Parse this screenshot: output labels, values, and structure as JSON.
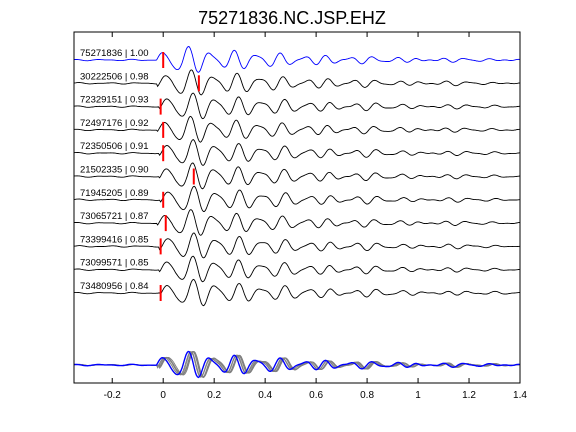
{
  "chart_data": {
    "type": "line",
    "title": "75271836.NC.JSP.EHZ",
    "xlabel": "",
    "ylabel": "",
    "xlim": [
      -0.35,
      1.4
    ],
    "xticks": [
      -0.2,
      0,
      0.2,
      0.4,
      0.6,
      0.8,
      1,
      1.2,
      1.4
    ],
    "xtick_labels": [
      "-0.2",
      "0",
      "0.2",
      "0.4",
      "0.6",
      "0.8",
      "1",
      "1.2",
      "1.4"
    ],
    "grid": false,
    "colors": {
      "reference": "#0000ff",
      "trace": "#000000",
      "pick": "#ff0000",
      "stack_overlay": "#808080"
    },
    "series": [
      {
        "name": "75271836 | 1.00",
        "pick": 0.0
      },
      {
        "name": "30222506 | 0.98",
        "pick": 0.14
      },
      {
        "name": "72329151 | 0.93",
        "pick": -0.01
      },
      {
        "name": "72497176 | 0.92",
        "pick": 0.0
      },
      {
        "name": "72350506 | 0.91",
        "pick": 0.0
      },
      {
        "name": "21502335 | 0.90",
        "pick": 0.12
      },
      {
        "name": "71945205 | 0.89",
        "pick": 0.0
      },
      {
        "name": "73065721 | 0.87",
        "pick": 0.01
      },
      {
        "name": "73399416 | 0.85",
        "pick": -0.01
      },
      {
        "name": "73099571 | 0.85",
        "pick": null
      },
      {
        "name": "73480956 | 0.84",
        "pick": -0.01
      }
    ]
  }
}
